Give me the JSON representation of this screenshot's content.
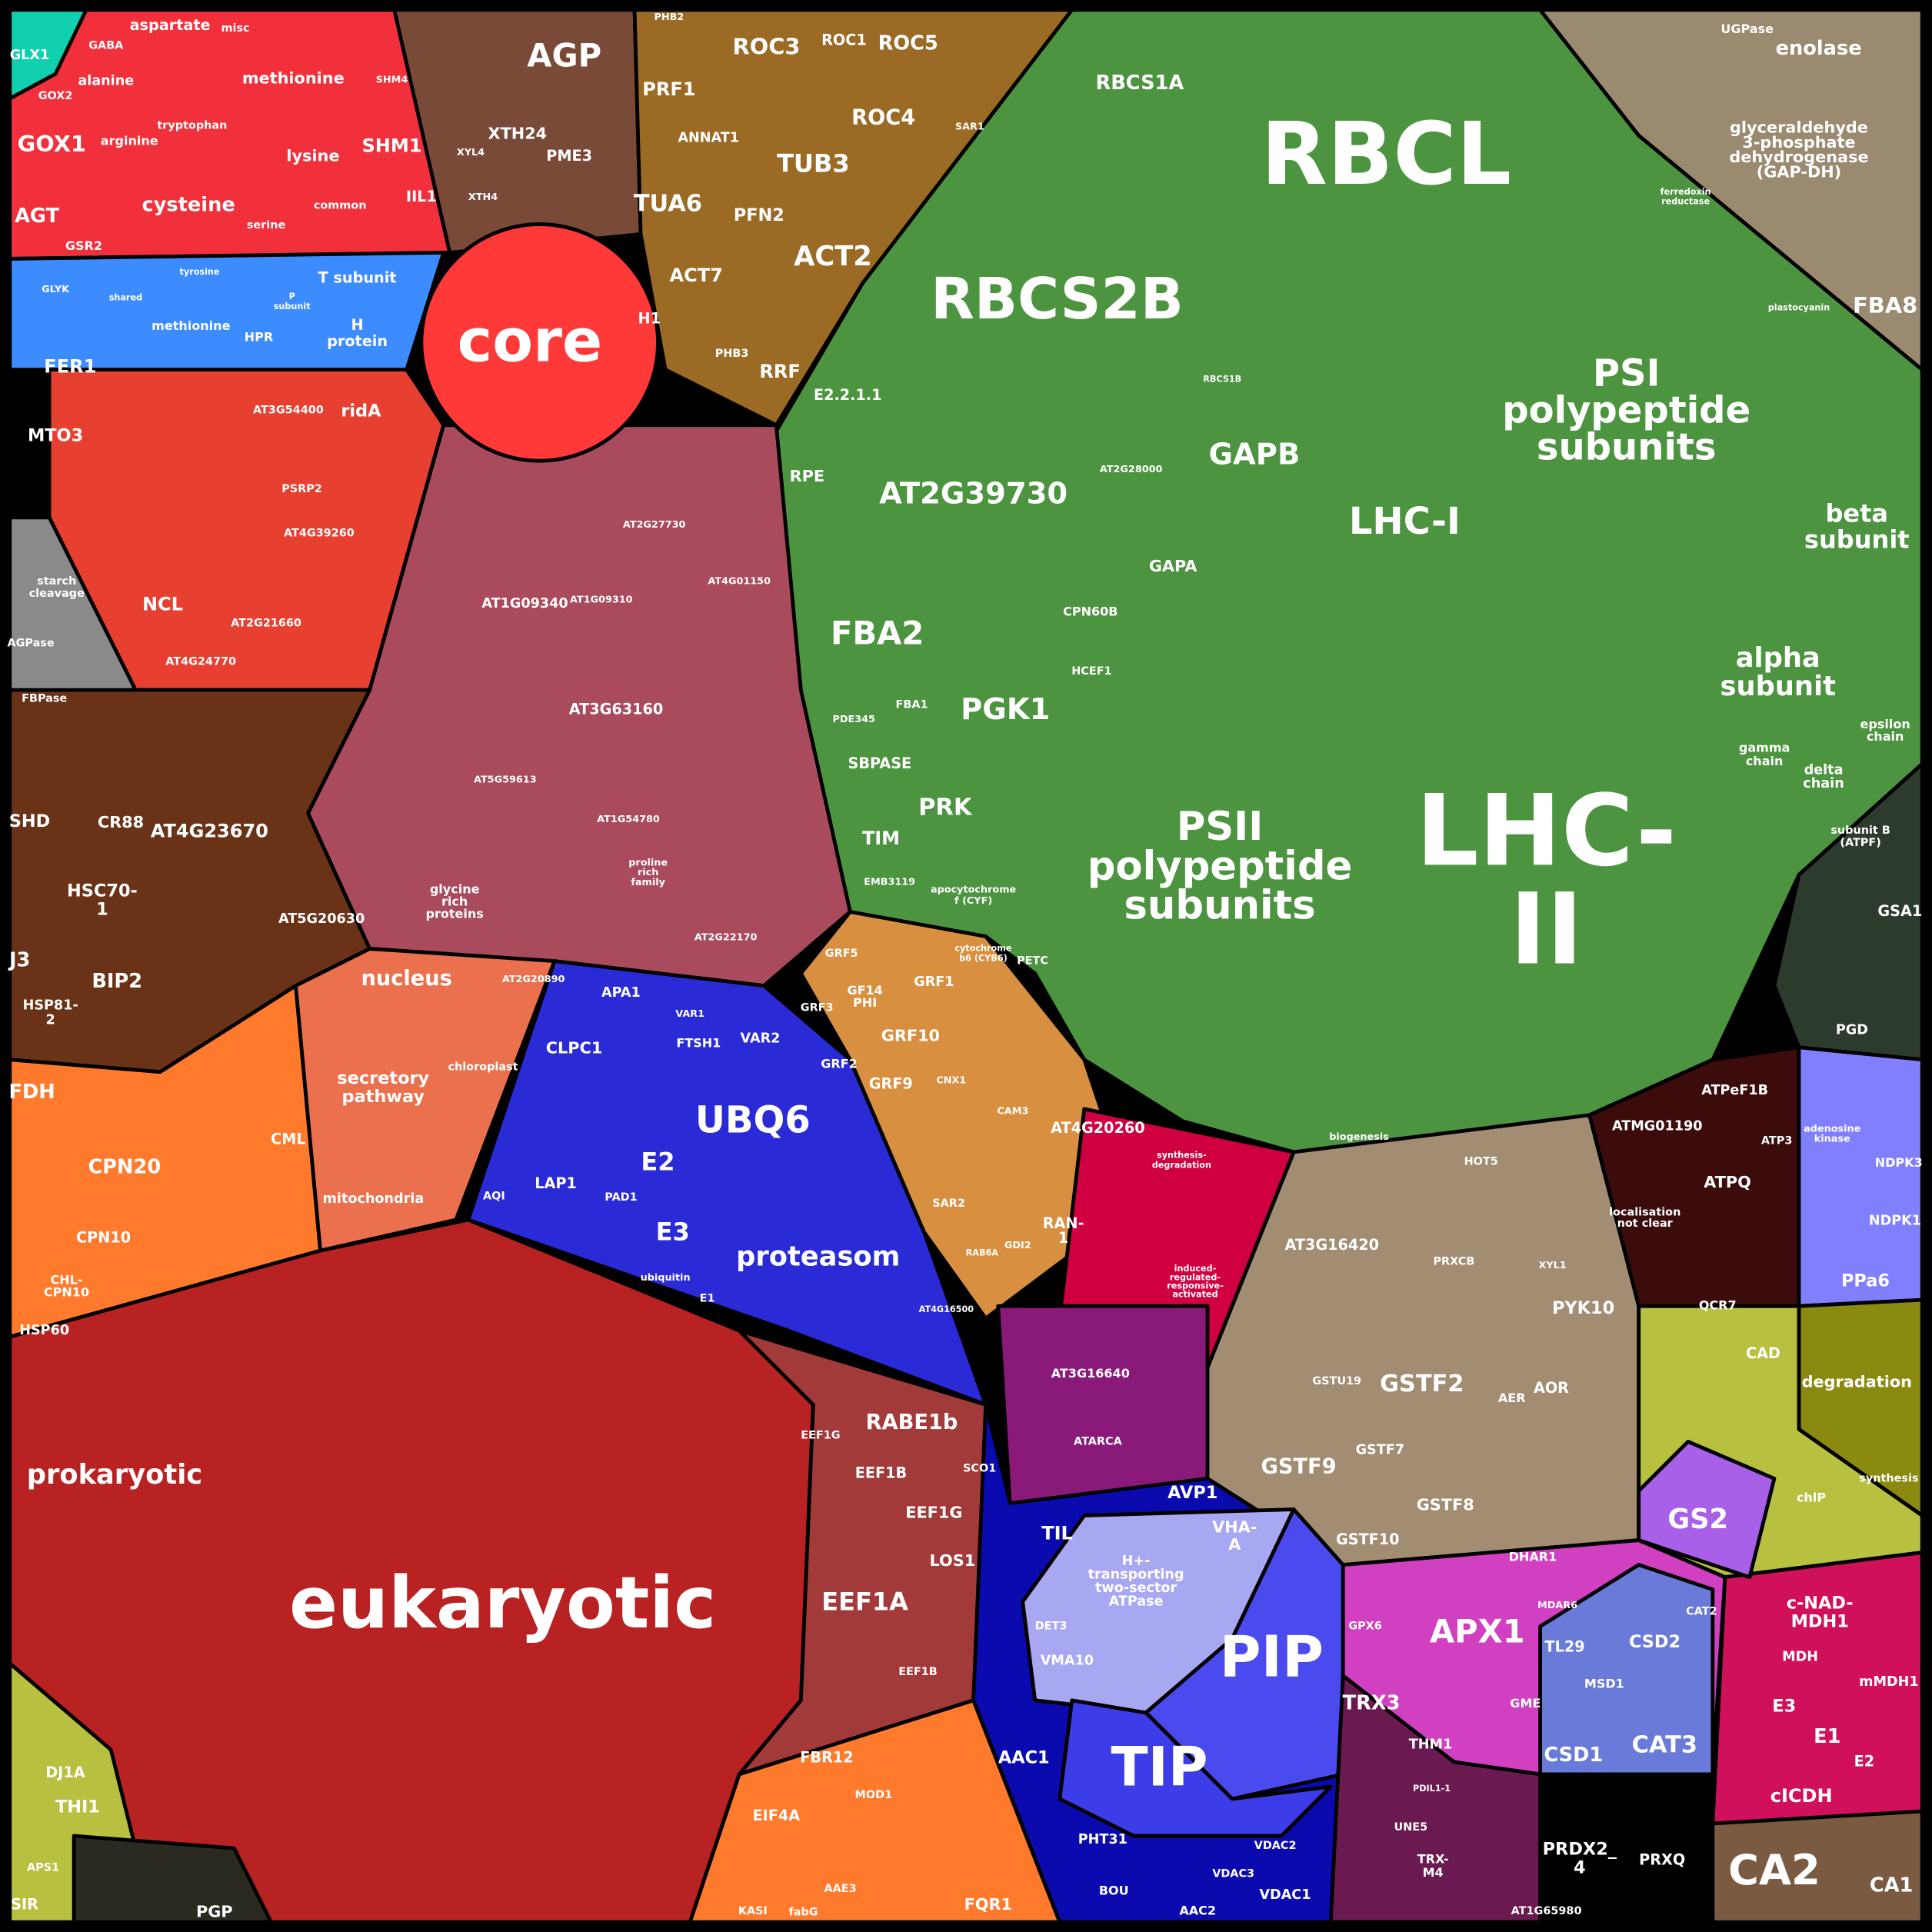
{
  "colors": {
    "photosynthesis": "#4d9440",
    "photosynthesis_dark": "#2d3b2d",
    "amino_acid": "#f2303c",
    "photorespiration": "#3d8cff",
    "core": "#ff3838",
    "cytoskeleton": "#9b6a24",
    "misc_mauve": "#a94b5c",
    "stress_brown": "#6a3318",
    "folding_orange": "#ff7a2c",
    "nucleus_salmon": "#ea704e",
    "proteasome": "#2a2ad6",
    "ribosome": "#b82222",
    "translation": "#a23a3a",
    "transport": "#0a0aae",
    "pip_tip": "#4444ec",
    "atpase_pale": "#a8a8f2",
    "gst_tan": "#a28c72",
    "redox_pink": "#d040c0",
    "redox_dark": "#6a1a50",
    "maroon": "#3c0c0c",
    "lavender": "#8080ff",
    "olive": "#8a8a10",
    "glycolysis": "#9a8a70",
    "tca": "#d0105a",
    "ca2": "#7a5a40",
    "crimson": "#d00040",
    "purple": "#8a1a7a",
    "grf": "#d89040",
    "teal": "#10d0b0",
    "gray": "#8a8a8a",
    "midred": "#e84030",
    "yellowgreen": "#b8c040",
    "lightblue": "#6a7ad8"
  },
  "labels": {
    "rbcl": "RBCL",
    "rbcs1a": "RBCS1A",
    "rbcs2b": "RBCS2B",
    "rbcs1b": "RBCS1B",
    "psi": [
      "PSI",
      "polypeptide",
      "subunits"
    ],
    "psii": [
      "PSII",
      "polypeptide",
      "subunits"
    ],
    "lhc2": [
      "LHC-",
      "II"
    ],
    "lhc1": "LHC-I",
    "gapb": "GAPB",
    "gapa": "GAPA",
    "at2g39730": "AT2G39730",
    "fba2": "FBA2",
    "pgk1": "PGK1",
    "prk": "PRK",
    "sbpase": "SBPASE",
    "tim": "TIM",
    "rpe": "RPE",
    "e221": "E2.2.1.1",
    "cpn60b": "CPN60B",
    "hcef1": "HCEF1",
    "beta": [
      "beta",
      "subunit"
    ],
    "alpha": [
      "alpha",
      "subunit"
    ],
    "delta": [
      "delta",
      "chain"
    ],
    "gamma": [
      "gamma",
      "chain"
    ],
    "epsilon": [
      "epsilon",
      "chain"
    ],
    "subunitb": [
      "subunit B",
      "(ATPF)"
    ],
    "ferredoxin": [
      "ferredoxin",
      "reductase"
    ],
    "plastocyanin": "plastocyanin",
    "fba8": "FBA8",
    "enolase": "enolase",
    "gapdh": [
      "glyceraldehyde",
      "3-phosphate",
      "dehydrogenase",
      "(GAP-DH)"
    ],
    "ugpase": "UGPase",
    "biogenesis": "biogenesis",
    "petc": "PETC",
    "apocyt": [
      "apocytochrome",
      "f (CYF)"
    ],
    "cytb6": [
      "cytochrome",
      "b6 (CYB6)"
    ],
    "at2g28000": "AT2G28000",
    "pde345": "PDE345",
    "fba1": "FBA1",
    "emb3119": "EMB3119",
    "core": "core",
    "h1": "H1",
    "agp": "AGP",
    "xth24": "XTH24",
    "pme3": "PME3",
    "xth4": "XTH4",
    "xyl4": "XYL4",
    "roc3": "ROC3",
    "roc1": "ROC1",
    "roc5": "ROC5",
    "roc4": "ROC4",
    "prf1": "PRF1",
    "annat1": "ANNAT1",
    "tub3": "TUB3",
    "tua6": "TUA6",
    "pfn2": "PFN2",
    "act2": "ACT2",
    "act7": "ACT7",
    "rrf": "RRF",
    "phb3": "PHB3",
    "phb2": "PHB2",
    "sar1": "SAR1",
    "aspartate": "aspartate",
    "gaba": "GABA",
    "alanine": "alanine",
    "misc": "misc",
    "methionine": "methionine",
    "gox1": "GOX1",
    "arginine": "arginine",
    "tryptophan": "tryptophan",
    "lysine": "lysine",
    "shm1": "SHM1",
    "agt": "AGT",
    "cysteine": "cysteine",
    "serine": "serine",
    "common": "common",
    "ill1": "IIL1",
    "gsr2": "GSR2",
    "gox2": "GOX2",
    "glx1": "GLX1",
    "shm4": "SHM4",
    "tsubunit": "T subunit",
    "methionine2": "methionine",
    "hpr": "HPR",
    "hprotein": [
      "H",
      "protein"
    ],
    "psubunit": [
      "P",
      "subunit"
    ],
    "glyk": "GLYK",
    "shared": "shared",
    "tyrosine": "tyrosine",
    "fer1": "FER1",
    "mto3": "MTO3",
    "ncl": "NCL",
    "rida": "ridA",
    "at3g54400": "AT3G54400",
    "psrp2": "PSRP2",
    "at4g39260": "AT4G39260",
    "at2g21660": "AT2G21660",
    "at4g24770": "AT4G24770",
    "starch": [
      "starch",
      "cleavage"
    ],
    "agpase": "AGPase",
    "fbpase": "FBPase",
    "at1g09340": "AT1G09340",
    "at3g63160": "AT3G63160",
    "at2g27730": "AT2G27730",
    "at4g01150": "AT4G01150",
    "at1g54780": "AT1G54780",
    "at5g59613": "AT5G59613",
    "glycine": [
      "glycine",
      "rich",
      "proteins"
    ],
    "proline": [
      "proline",
      "rich",
      "family"
    ],
    "at2g22170": "AT2G22170",
    "at1g09310": "AT1G09310",
    "shd": "SHD",
    "cr88": "CR88",
    "hsc70": [
      "HSC70-",
      "1"
    ],
    "at4g23670": "AT4G23670",
    "bip2": "BIP2",
    "hsp812": [
      "HSP81-",
      "2"
    ],
    "at5g20630": "AT5G20630",
    "j3": "J3",
    "fdh": "FDH",
    "cpn20": "CPN20",
    "cpn10": "CPN10",
    "chlcpn10": [
      "CHL-",
      "CPN10"
    ],
    "hsp60": "HSP60",
    "cml": "CML",
    "nucleus": "nucleus",
    "secretory": [
      "secretory",
      "pathway"
    ],
    "chloroplast": "chloroplast",
    "mitochondria": "mitochondria",
    "at2g20890": "AT2G20890",
    "apa1": "APA1",
    "clpc1": "CLPC1",
    "ftsh1": "FTSH1",
    "var2": "VAR2",
    "var1": "VAR1",
    "ubq6": "UBQ6",
    "e2": "E2",
    "e3": "E3",
    "lap1": "LAP1",
    "pad1": "PAD1",
    "proteasom": "proteasom",
    "ubiquitin": "ubiquitin",
    "e1": "E1",
    "aqi": "AQI",
    "prokaryotic": "prokaryotic",
    "eukaryotic": "eukaryotic",
    "rabe1b": "RABE1b",
    "eef1b": "EEF1B",
    "eef1g": "EEF1G",
    "eef1g2": "EEF1G",
    "eef1a": "EEF1A",
    "los1": "LOS1",
    "sco1": "SCO1",
    "eef1bb": "EEF1B",
    "fbr12": "FBR12",
    "eif4a": "EIF4A",
    "grf5": "GRF5",
    "grf1": "GRF1",
    "grf3": "GRF3",
    "grf10": "GRF10",
    "grf2": "GRF2",
    "grf9": "GRF9",
    "gf14": [
      "GF14",
      "PHI"
    ],
    "at4g20260": "AT4G20260",
    "ran1": [
      "RAN-",
      "1"
    ],
    "sar2": "SAR2",
    "cnx1": "CNX1",
    "cam3": "CAM3",
    "gdi2": "GDI2",
    "rab6a": "RAB6A",
    "at3g16640": "AT3G16640",
    "atarca": "ATARCA",
    "at4g16500": "AT4G16500",
    "synthesis_deg": [
      "synthesis-",
      "degradation"
    ],
    "induced": [
      "induced-",
      "regulated-",
      "responsive-",
      "activated"
    ],
    "avp1": "AVP1",
    "til": "TIL",
    "vhaa": [
      "VHA-",
      "A"
    ],
    "h_atpase": [
      "H+-",
      "transporting",
      "two-sector",
      "ATPase"
    ],
    "det3": "DET3",
    "vma10": "VMA10",
    "pip": "PIP",
    "tip": "TIP",
    "aac1": "AAC1",
    "pht31": "PHT31",
    "bou": "BOU",
    "vdac2": "VDAC2",
    "vdac3": "VDAC3",
    "vdac1": "VDAC1",
    "aac2": "AAC2",
    "mod1": "MOD1",
    "fqr1": "FQR1",
    "aae3": "AAE3",
    "kasi": "KASI",
    "fabg": "fabG",
    "at3g16420": "AT3G16420",
    "gstf2": "GSTF2",
    "gstf9": "GSTF9",
    "gstf8": "GSTF8",
    "gstf10": "GSTF10",
    "gstf7": "GSTF7",
    "gstu19": "GSTU19",
    "pyk10": "PYK10",
    "aor": "AOR",
    "aer": "AER",
    "prxcb": "PRXCB",
    "hot5": "HOT5",
    "xyl1": "XYL1",
    "apx1": "APX1",
    "trx3": "TRX3",
    "thm1": "THM1",
    "pdil11": "PDIL1-1",
    "une5": "UNE5",
    "trxm4": [
      "TRX-",
      "M4"
    ],
    "prdx2": [
      "PRDX2_",
      "4"
    ],
    "prxq": "PRXQ",
    "at1g65980": "AT1G65980",
    "csd1": "CSD1",
    "csd2": "CSD2",
    "cat3": "CAT3",
    "cat2": "CAT2",
    "msd1": "MSD1",
    "dhar1": "DHAR1",
    "tl29": "TL29",
    "gme": "GME",
    "gpx6": "GPX6",
    "mdhar": "MDAR6",
    "gs2": "GS2",
    "cad": "CAD",
    "degradation": "degradation",
    "synthesis": "synthesis",
    "chlp": "chlP",
    "cnadmdh1": [
      "c-NAD-",
      "MDH1"
    ],
    "mdh": "MDH",
    "mmdh1": "mMDH1",
    "e3b": "E3",
    "e1b": "E1",
    "e2b": "E2",
    "clcdh": "cICDH",
    "ca2": "CA2",
    "ca1": "CA1",
    "atmg01190": "ATMG01190",
    "atpq": "ATPQ",
    "atpef1b": "ATPeF1B",
    "atp3": "ATP3",
    "localisation": [
      "localisation",
      "not clear"
    ],
    "qcr7": "QCR7",
    "ppa6": "PPa6",
    "ndpk1": "NDPK1",
    "ndpk3": "NDPK3",
    "adenosine": [
      "adenosine",
      "kinase"
    ],
    "gsa1": "GSA1",
    "pgd": "PGD",
    "dj1a": "DJ1A",
    "thi1": "THI1",
    "sir": "SIR",
    "pgp": "PGP",
    "aps1": "APS1"
  }
}
